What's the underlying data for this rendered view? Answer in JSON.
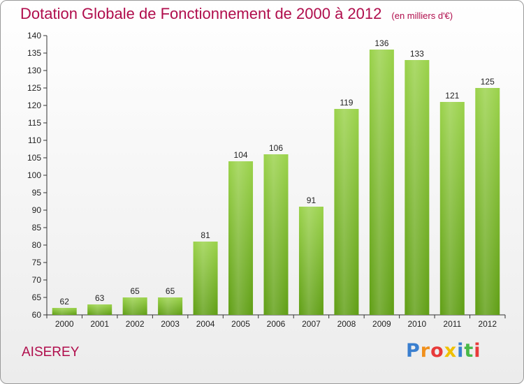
{
  "header": {
    "title": "Dotation Globale de Fonctionnement de 2000 à 2012",
    "unit": "(en milliers d'€)"
  },
  "footer": {
    "commune": "AISEREY",
    "logo": [
      "P",
      "r",
      "o",
      "x",
      "i",
      "t",
      "i"
    ],
    "logo_colors": [
      "#3a7fcf",
      "#f0901c",
      "#e83a3a",
      "#f0c000",
      "#3a7fcf",
      "#48b848",
      "#e83a3a"
    ]
  },
  "chart_data": {
    "type": "bar",
    "categories": [
      "2000",
      "2001",
      "2002",
      "2003",
      "2004",
      "2005",
      "2006",
      "2007",
      "2008",
      "2009",
      "2010",
      "2011",
      "2012"
    ],
    "values": [
      62,
      63,
      65,
      65,
      81,
      104,
      106,
      91,
      119,
      136,
      133,
      121,
      125
    ],
    "title": "Dotation Globale de Fonctionnement de 2000 à 2012",
    "subtitle": "(en milliers d'€)",
    "xlabel": "",
    "ylabel": "",
    "ylim": [
      60,
      140
    ],
    "ytick_step": 5,
    "bar_color": "#7cbf2a",
    "grid": false
  }
}
